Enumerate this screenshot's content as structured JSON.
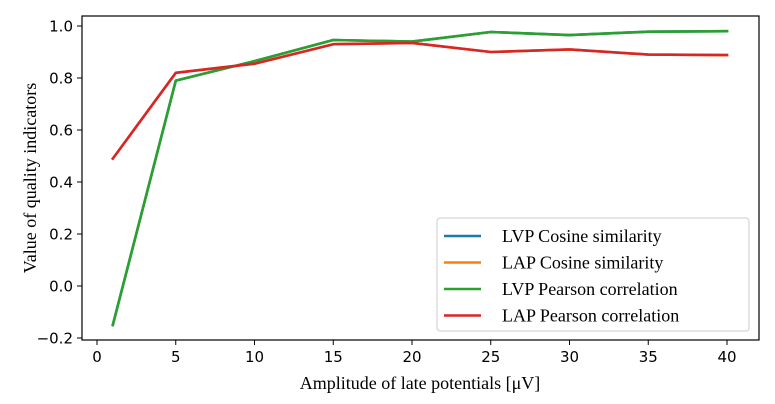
{
  "chart_data": {
    "type": "line",
    "title": "",
    "xlabel": "Amplitude of late potentials [μV]",
    "ylabel": "Value of quality indicators",
    "xlim": [
      -1,
      42
    ],
    "ylim": [
      -0.21,
      1.03
    ],
    "xticks": [
      0,
      5,
      10,
      15,
      20,
      25,
      30,
      35,
      40
    ],
    "xtick_labels": [
      "0",
      "5",
      "10",
      "15",
      "20",
      "25",
      "30",
      "35",
      "40"
    ],
    "yticks": [
      -0.2,
      0.0,
      0.2,
      0.4,
      0.6,
      0.8,
      1.0
    ],
    "ytick_labels": [
      "−0.2",
      "0.0",
      "0.2",
      "0.4",
      "0.6",
      "0.8",
      "1.0"
    ],
    "grid": false,
    "legend_position": "lower-right",
    "x": [
      1,
      5,
      10,
      15,
      20,
      25,
      30,
      35,
      40
    ],
    "series": [
      {
        "name": "LVP Cosine similarity",
        "color": "#1f77b4",
        "values": [
          -0.15,
          0.79,
          0.865,
          0.946,
          0.94,
          0.977,
          0.965,
          0.978,
          0.98
        ]
      },
      {
        "name": "LAP Cosine similarity",
        "color": "#ff7f0e",
        "values": [
          0.49,
          0.82,
          0.855,
          0.93,
          0.935,
          0.9,
          0.91,
          0.89,
          0.888
        ]
      },
      {
        "name": "LVP Pearson correlation",
        "color": "#2ca02c",
        "values": [
          -0.15,
          0.79,
          0.865,
          0.946,
          0.94,
          0.977,
          0.965,
          0.978,
          0.98
        ]
      },
      {
        "name": "LAP Pearson correlation",
        "color": "#d62728",
        "values": [
          0.49,
          0.82,
          0.855,
          0.93,
          0.935,
          0.9,
          0.91,
          0.89,
          0.888
        ]
      }
    ]
  }
}
